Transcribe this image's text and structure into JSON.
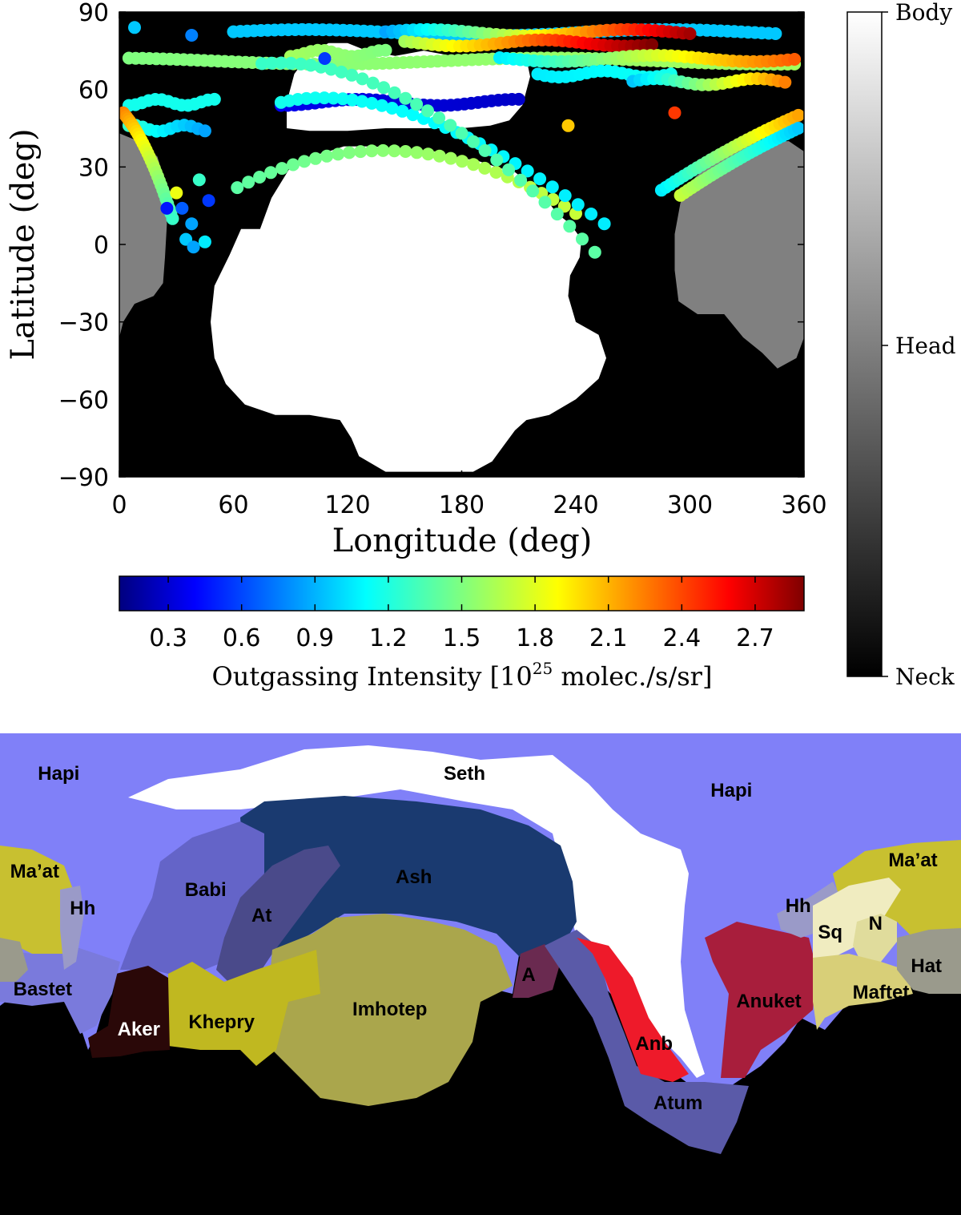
{
  "chart_data": [
    {
      "type": "scatter",
      "xlabel": "Longitude (deg)",
      "ylabel": "Latitude (deg)",
      "xlim": [
        0,
        360
      ],
      "ylim": [
        -90,
        90
      ],
      "xticks": [
        0,
        60,
        120,
        180,
        240,
        300,
        360
      ],
      "yticks": [
        90,
        60,
        30,
        0,
        -30,
        -60,
        -90
      ],
      "xtick_labels": [
        "0",
        "60",
        "120",
        "180",
        "240",
        "300",
        "360"
      ],
      "ytick_labels": [
        "90",
        "60",
        "30",
        "0",
        "−30",
        "−60",
        "−90"
      ],
      "background": {
        "black_region": "Neck",
        "white_region": "Body",
        "gray_region": "Head",
        "body_outline": [
          [
            74,
            6
          ],
          [
            80,
            18
          ],
          [
            90,
            30
          ],
          [
            100,
            34
          ],
          [
            110,
            36
          ],
          [
            118,
            38
          ],
          [
            126,
            38
          ],
          [
            134,
            38
          ],
          [
            144,
            37
          ],
          [
            158,
            36
          ],
          [
            166,
            36
          ],
          [
            174,
            34
          ],
          [
            180,
            33
          ],
          [
            186,
            33
          ],
          [
            198,
            30
          ],
          [
            208,
            28
          ],
          [
            222,
            20
          ],
          [
            230,
            12
          ],
          [
            237,
            8
          ],
          [
            243,
            2
          ],
          [
            242,
            -5
          ],
          [
            237,
            -12
          ],
          [
            236,
            -20
          ],
          [
            240,
            -30
          ],
          [
            252,
            -35
          ],
          [
            256,
            -44
          ],
          [
            252,
            -52
          ],
          [
            240,
            -60
          ],
          [
            226,
            -66
          ],
          [
            214,
            -68
          ],
          [
            208,
            -72
          ],
          [
            202,
            -78
          ],
          [
            196,
            -84
          ],
          [
            186,
            -88
          ],
          [
            140,
            -88
          ],
          [
            126,
            -82
          ],
          [
            122,
            -75
          ],
          [
            116,
            -68
          ],
          [
            100,
            -66
          ],
          [
            82,
            -66
          ],
          [
            66,
            -62
          ],
          [
            56,
            -54
          ],
          [
            50,
            -44
          ],
          [
            48,
            -30
          ],
          [
            50,
            -16
          ],
          [
            58,
            -4
          ],
          [
            64,
            6
          ]
        ],
        "cap_outline": [
          [
            88,
            45
          ],
          [
            88,
            55
          ],
          [
            92,
            66
          ],
          [
            100,
            74
          ],
          [
            110,
            78
          ],
          [
            120,
            78
          ],
          [
            130,
            75
          ],
          [
            145,
            73
          ],
          [
            160,
            75
          ],
          [
            175,
            73
          ],
          [
            190,
            74
          ],
          [
            205,
            74
          ],
          [
            214,
            72
          ],
          [
            216,
            65
          ],
          [
            212,
            54
          ],
          [
            205,
            48
          ],
          [
            195,
            46
          ],
          [
            180,
            45
          ],
          [
            160,
            45
          ],
          [
            140,
            45
          ],
          [
            120,
            44
          ],
          [
            100,
            44
          ]
        ],
        "head_left_outline": [
          [
            0,
            43
          ],
          [
            10,
            40
          ],
          [
            20,
            34
          ],
          [
            24,
            24
          ],
          [
            25,
            8
          ],
          [
            24,
            -5
          ],
          [
            23,
            -15
          ],
          [
            18,
            -20
          ],
          [
            8,
            -23
          ],
          [
            2,
            -30
          ],
          [
            0,
            -36
          ]
        ],
        "head_right_outline": [
          [
            360,
            36
          ],
          [
            352,
            40
          ],
          [
            340,
            40
          ],
          [
            330,
            40
          ],
          [
            320,
            37
          ],
          [
            310,
            31
          ],
          [
            300,
            24
          ],
          [
            295,
            16
          ],
          [
            292,
            4
          ],
          [
            292,
            -10
          ],
          [
            294,
            -22
          ],
          [
            304,
            -27
          ],
          [
            318,
            -27
          ],
          [
            328,
            -36
          ],
          [
            338,
            -42
          ],
          [
            346,
            -48
          ],
          [
            356,
            -44
          ],
          [
            360,
            -36
          ]
        ]
      },
      "colorbar": {
        "label": "Outgassing Intensity [10",
        "label_superscript": "25",
        "label_tail": " molec./s/sr]",
        "range": [
          0.1,
          2.9
        ],
        "ticks": [
          0.3,
          0.6,
          0.9,
          1.2,
          1.5,
          1.8,
          2.1,
          2.4,
          2.7
        ],
        "tick_labels": [
          "0.3",
          "0.6",
          "0.9",
          "1.2",
          "1.5",
          "1.8",
          "2.1",
          "2.4",
          "2.7"
        ],
        "colormap": "jet"
      },
      "gray_colorbar": {
        "labels": [
          "Body",
          "Head",
          "Neck"
        ],
        "colors": [
          "#ffffff",
          "#808080",
          "#000000"
        ]
      },
      "tracks": [
        {
          "lon": [
            5,
            355
          ],
          "lat": 71,
          "v0": 1.5,
          "v1": 1.6
        },
        {
          "lon": [
            60,
            345
          ],
          "lat": 82,
          "v0": 1.0,
          "v1": 1.0
        },
        {
          "lon": [
            140,
            300
          ],
          "lat": 82,
          "v0": 0.9,
          "v1": 2.8
        },
        {
          "lon": [
            150,
            280
          ],
          "lat": 78,
          "v0": 1.6,
          "v1": 2.9
        },
        {
          "lon": [
            90,
            140
          ],
          "lat": 74,
          "v0": 1.6,
          "v1": 1.5
        },
        {
          "lon": [
            200,
            355
          ],
          "lat": 72,
          "v0": 1.1,
          "v1": 2.3
        },
        {
          "lon": [
            220,
            290
          ],
          "lat": 66,
          "v0": 1.1,
          "v1": 1.2
        },
        {
          "lon": [
            270,
            350
          ],
          "lat": 63,
          "v0": 1.0,
          "v1": 2.2
        },
        {
          "lon": [
            5,
            50
          ],
          "lat": 55,
          "v0": 1.2,
          "v1": 1.2
        },
        {
          "lon": [
            85,
            210
          ],
          "lat": 55,
          "v0": 0.4,
          "v1": 0.3
        },
        {
          "lon": [
            5,
            45
          ],
          "lat": 45,
          "v0": 1.3,
          "v1": 0.9
        }
      ],
      "arcs": [
        {
          "from": [
            62,
            22
          ],
          "mid": [
            150,
            55
          ],
          "to": [
            240,
            12
          ],
          "v0": 1.4,
          "v1": 1.7
        },
        {
          "from": [
            85,
            55
          ],
          "mid": [
            150,
            66
          ],
          "to": [
            255,
            8
          ],
          "v0": 1.2,
          "v1": 1.1
        },
        {
          "from": [
            75,
            70
          ],
          "mid": [
            150,
            75
          ],
          "to": [
            250,
            -3
          ],
          "v0": 1.3,
          "v1": 1.4
        },
        {
          "from": [
            2,
            51
          ],
          "mid": [
            15,
            40
          ],
          "to": [
            28,
            10
          ],
          "v0": 2.2,
          "v1": 1.3
        },
        {
          "from": [
            285,
            21
          ],
          "mid": [
            320,
            38
          ],
          "to": [
            357,
            50
          ],
          "v0": 1.1,
          "v1": 2.1
        },
        {
          "from": [
            295,
            19
          ],
          "mid": [
            325,
            34
          ],
          "to": [
            357,
            45
          ],
          "v0": 1.7,
          "v1": 1.0
        }
      ],
      "scatter_extra": [
        {
          "lon": 30,
          "lat": 20,
          "v": 1.8
        },
        {
          "lon": 33,
          "lat": 14,
          "v": 0.7
        },
        {
          "lon": 38,
          "lat": 8,
          "v": 0.9
        },
        {
          "lon": 35,
          "lat": 2,
          "v": 1.0
        },
        {
          "lon": 42,
          "lat": 25,
          "v": 1.3
        },
        {
          "lon": 47,
          "lat": 17,
          "v": 0.6
        },
        {
          "lon": 45,
          "lat": 1,
          "v": 1.1
        },
        {
          "lon": 39,
          "lat": -1,
          "v": 0.9
        },
        {
          "lon": 25,
          "lat": 14,
          "v": 0.5
        },
        {
          "lon": 292,
          "lat": 51,
          "v": 2.4
        },
        {
          "lon": 236,
          "lat": 46,
          "v": 2.0
        },
        {
          "lon": 8,
          "lat": 84,
          "v": 1.0
        },
        {
          "lon": 38,
          "lat": 81,
          "v": 0.8
        },
        {
          "lon": 108,
          "lat": 72,
          "v": 0.6
        }
      ]
    },
    {
      "type": "region-map",
      "background": "#000000",
      "regions": [
        {
          "name": "Hapi",
          "color": "#8080f8"
        },
        {
          "name": "Seth",
          "color": "#ffffff"
        },
        {
          "name": "Ash",
          "color": "#1a3a70"
        },
        {
          "name": "Babi",
          "color": "#6464c8"
        },
        {
          "name": "At",
          "color": "#4a4a8a"
        },
        {
          "name": "Ma’at",
          "color": "#c8c030"
        },
        {
          "name": "Hh",
          "color": "#9a9ac8"
        },
        {
          "name": "Bastet",
          "color": "#7a7adc"
        },
        {
          "name": "Aker",
          "color": "#2a0808"
        },
        {
          "name": "Khepry",
          "color": "#c0b820"
        },
        {
          "name": "Imhotep",
          "color": "#aaa64c"
        },
        {
          "name": "A",
          "color": "#6a2a50"
        },
        {
          "name": "Anb",
          "color": "#ee1a2a"
        },
        {
          "name": "Atum",
          "color": "#5a5aa8"
        },
        {
          "name": "Anuket",
          "color": "#a81e3c"
        },
        {
          "name": "Sq",
          "color": "#f0ecc0"
        },
        {
          "name": "N",
          "color": "#e0dc9c"
        },
        {
          "name": "Maftet",
          "color": "#d8cf78"
        },
        {
          "name": "Hat",
          "color": "#9a9a8c"
        }
      ],
      "labels": [
        {
          "text": "Hapi",
          "lon": 22
        },
        {
          "text": "Seth",
          "lon": 174
        },
        {
          "text": "Hapi",
          "lon": 274
        },
        {
          "text": "Ma’at",
          "lon": 13
        },
        {
          "text": "Hh",
          "lon": 31
        },
        {
          "text": "Babi",
          "lon": 77
        },
        {
          "text": "At",
          "lon": 98
        },
        {
          "text": "Ash",
          "lon": 155
        },
        {
          "text": "Bastet",
          "lon": 16
        },
        {
          "text": "Aker",
          "lon": 52
        },
        {
          "text": "Khepry",
          "lon": 83
        },
        {
          "text": "Imhotep",
          "lon": 146
        },
        {
          "text": "A",
          "lon": 198
        },
        {
          "text": "Anb",
          "lon": 245
        },
        {
          "text": "Atum",
          "lon": 254
        },
        {
          "text": "Hh",
          "lon": 299
        },
        {
          "text": "Sq",
          "lon": 311
        },
        {
          "text": "N",
          "lon": 328
        },
        {
          "text": "Ma’at",
          "lon": 342
        },
        {
          "text": "Anuket",
          "lon": 288
        },
        {
          "text": "Maftet",
          "lon": 330
        },
        {
          "text": "Hat",
          "lon": 347
        }
      ]
    }
  ]
}
